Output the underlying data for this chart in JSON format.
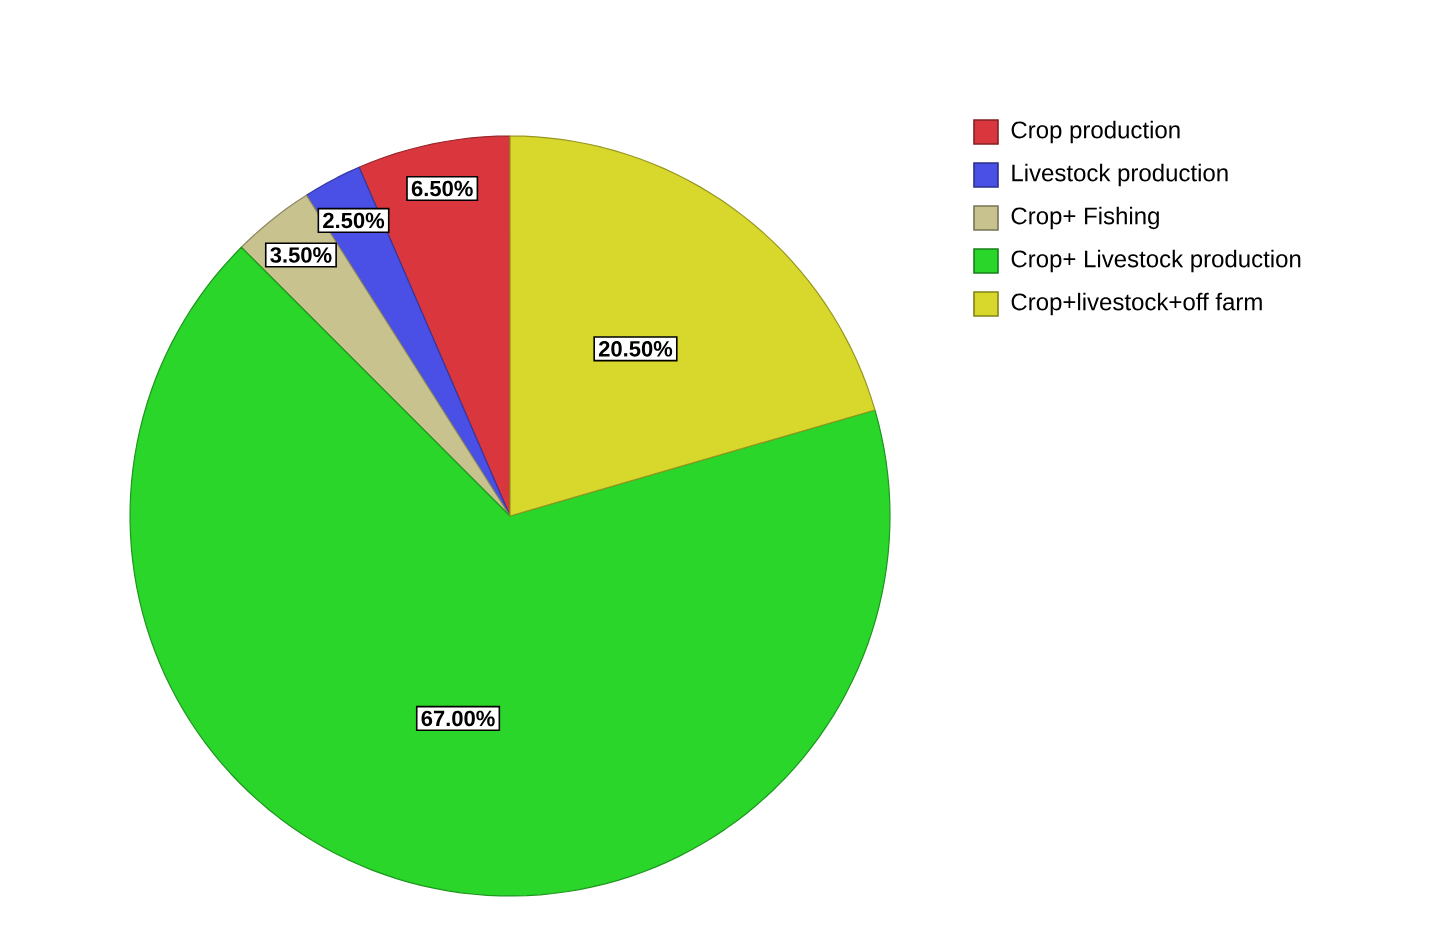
{
  "chart_data": {
    "type": "pie",
    "categories": [
      "Crop production",
      "Livestock production",
      "Crop+ Fishing",
      "Crop+ Livestock production",
      "Crop+livestock+off farm"
    ],
    "values": [
      6.5,
      2.5,
      3.5,
      67,
      20.5
    ],
    "colors": [
      "#d9363e",
      "#4a50e6",
      "#c8c28e",
      "#2ad62a",
      "#d8d82c"
    ],
    "value_labels": [
      "6.50%",
      "2.50%",
      "3.50%",
      "67.00%",
      "20.50%"
    ],
    "legend": "top right"
  }
}
